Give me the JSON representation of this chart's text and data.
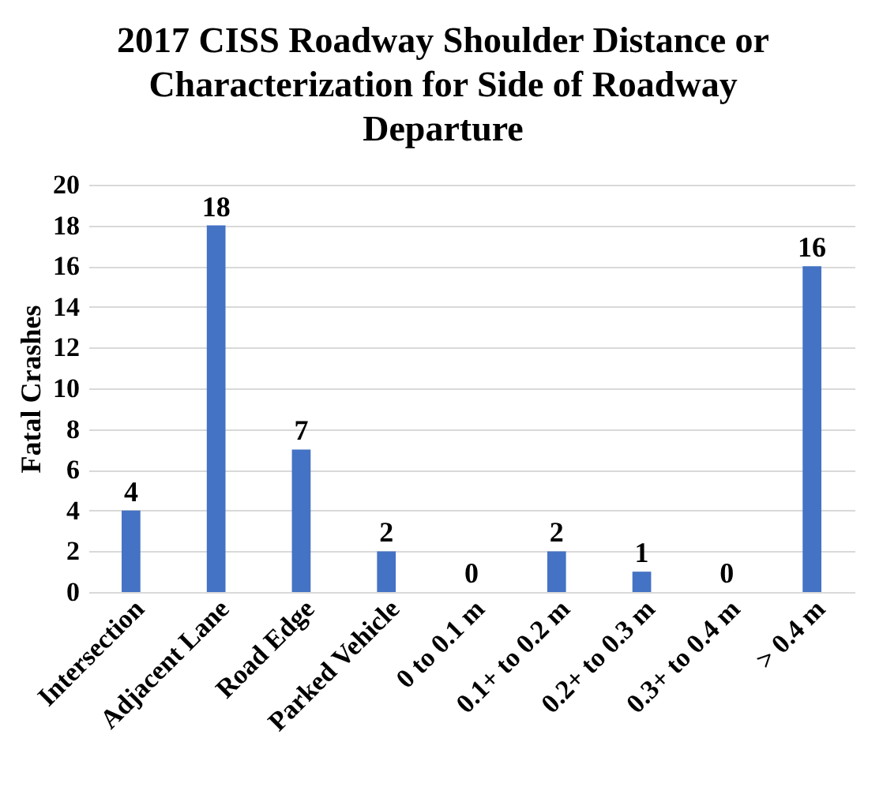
{
  "chart_data": {
    "type": "bar",
    "title": "2017 CISS Roadway Shoulder Distance or\nCharacterization for Side of Roadway\nDeparture",
    "ylabel": "Fatal Crashes",
    "categories": [
      "Intersection",
      "Adjacent Lane",
      "Road Edge",
      "Parked Vehicle",
      "0 to 0.1 m",
      "0.1+ to 0.2 m",
      "0.2+ to 0.3 m",
      "0.3+ to 0.4 m",
      "> 0.4 m"
    ],
    "values": [
      4,
      18,
      7,
      2,
      0,
      2,
      1,
      0,
      16
    ],
    "color": "#4472c4",
    "ylim": [
      0,
      20
    ],
    "yticks": [
      0,
      2,
      4,
      6,
      8,
      10,
      12,
      14,
      16,
      18,
      20
    ],
    "grid": "y",
    "data_labels": true
  }
}
